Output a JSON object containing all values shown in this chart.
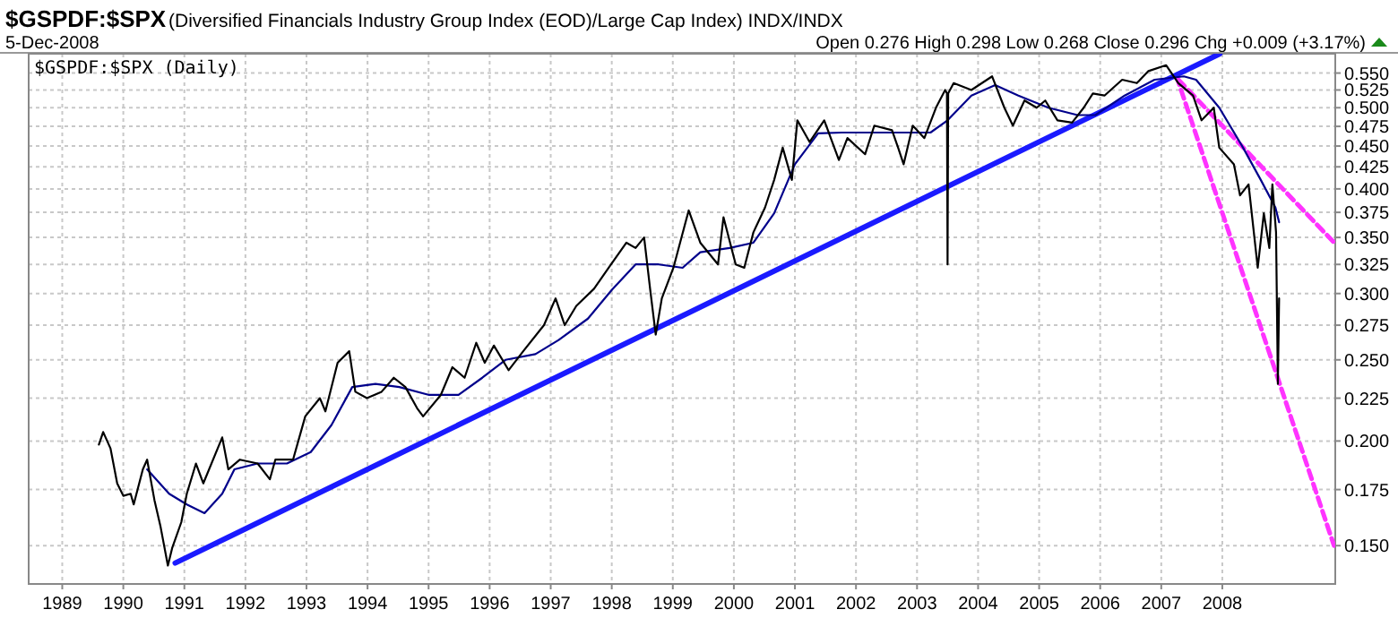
{
  "chart_data": {
    "type": "line",
    "title": "$GSPDF:$SPX",
    "subtitle": "(Diversified Financials Industry Group Index (EOD)/Large Cap Index) INDX/INDX",
    "annotations": [
      "5-Dec-2008",
      "Open 0.276 High 0.298 Low 0.268 Close 0.296 Chg +0.009 (+3.17%)",
      "$GSPDF:$SPX (Daily)"
    ],
    "log": "y",
    "grid": true,
    "xlim": [
      1988.45,
      2009.85
    ],
    "xticks": [
      1989,
      1990,
      1991,
      1992,
      1993,
      1994,
      1995,
      1996,
      1997,
      1998,
      1999,
      2000,
      2001,
      2002,
      2003,
      2004,
      2005,
      2006,
      2007,
      2008
    ],
    "ylim": [
      0.135,
      0.58
    ],
    "yticks": [
      {
        "value": 0.15,
        "label": "0.150"
      },
      0.175,
      {
        "value": 0.2,
        "label": "0.200"
      },
      0.225,
      {
        "value": 0.25,
        "label": "0.250"
      },
      0.275,
      {
        "value": 0.3,
        "label": "0.300"
      },
      0.325,
      {
        "value": 0.35,
        "label": "0.350"
      },
      0.375,
      {
        "value": 0.4,
        "label": "0.400"
      },
      0.425,
      {
        "value": 0.45,
        "label": "0.450"
      },
      0.475,
      {
        "value": 0.5,
        "label": "0.500"
      },
      0.525,
      {
        "value": 0.55,
        "label": "0.550"
      }
    ],
    "series": [
      {
        "color": "#000000",
        "x": [
          1989.6,
          1989.67,
          1989.79,
          1989.9,
          1990.0,
          1990.12,
          1990.17,
          1990.32,
          1990.39,
          1990.51,
          1990.61,
          1990.73,
          1990.8,
          1990.95,
          1991.04,
          1991.19,
          1991.31,
          1991.62,
          1991.72,
          1991.91,
          1992.2,
          1992.4,
          1992.49,
          1992.78,
          1992.98,
          1993.22,
          1993.31,
          1993.51,
          1993.7,
          1993.8,
          1993.99,
          1994.23,
          1994.43,
          1994.62,
          1994.81,
          1994.91,
          1995.2,
          1995.39,
          1995.59,
          1995.78,
          1995.92,
          1996.07,
          1996.31,
          1996.55,
          1996.89,
          1997.08,
          1997.23,
          1997.42,
          1997.71,
          1997.95,
          1998.24,
          1998.39,
          1998.53,
          1998.63,
          1998.72,
          1998.82,
          1999.01,
          1999.26,
          1999.45,
          1999.74,
          1999.83,
          2000.03,
          2000.17,
          2000.32,
          2000.51,
          2000.66,
          2000.8,
          2000.95,
          2001.04,
          2001.24,
          2001.48,
          2001.72,
          2001.86,
          2002.15,
          2002.3,
          2002.59,
          2002.69,
          2002.78,
          2002.93,
          2003.12,
          2003.31,
          2003.46,
          2003.49,
          2003.5,
          2003.51,
          2003.6,
          2003.89,
          2004.23,
          2004.43,
          2004.57,
          2004.76,
          2004.96,
          2005.1,
          2005.3,
          2005.54,
          2005.73,
          2005.88,
          2006.07,
          2006.36,
          2006.6,
          2006.79,
          2007.08,
          2007.28,
          2007.52,
          2007.66,
          2007.86,
          2007.95,
          2008.19,
          2008.29,
          2008.43,
          2008.58,
          2008.68,
          2008.77,
          2008.82,
          2008.88,
          2008.91,
          2008.93
        ],
        "values": [
          0.198,
          0.205,
          0.196,
          0.178,
          0.172,
          0.173,
          0.168,
          0.185,
          0.19,
          0.17,
          0.158,
          0.142,
          0.149,
          0.16,
          0.173,
          0.188,
          0.178,
          0.202,
          0.185,
          0.19,
          0.188,
          0.18,
          0.19,
          0.19,
          0.214,
          0.225,
          0.217,
          0.248,
          0.256,
          0.229,
          0.225,
          0.229,
          0.238,
          0.232,
          0.219,
          0.214,
          0.227,
          0.245,
          0.238,
          0.262,
          0.248,
          0.26,
          0.243,
          0.256,
          0.275,
          0.296,
          0.275,
          0.29,
          0.304,
          0.322,
          0.345,
          0.34,
          0.35,
          0.303,
          0.268,
          0.296,
          0.322,
          0.377,
          0.345,
          0.325,
          0.37,
          0.325,
          0.322,
          0.355,
          0.38,
          0.41,
          0.448,
          0.41,
          0.483,
          0.455,
          0.483,
          0.433,
          0.46,
          0.44,
          0.476,
          0.47,
          0.448,
          0.428,
          0.476,
          0.46,
          0.5,
          0.525,
          0.52,
          0.325,
          0.52,
          0.535,
          0.525,
          0.545,
          0.5,
          0.476,
          0.51,
          0.5,
          0.51,
          0.483,
          0.48,
          0.5,
          0.52,
          0.517,
          0.54,
          0.535,
          0.553,
          0.562,
          0.535,
          0.517,
          0.483,
          0.5,
          0.448,
          0.428,
          0.393,
          0.405,
          0.322,
          0.374,
          0.34,
          0.405,
          0.355,
          0.234,
          0.296
        ]
      },
      {
        "color": "#00008b",
        "x": [
          1990.39,
          1990.75,
          1991.04,
          1991.33,
          1991.62,
          1991.82,
          1992.2,
          1992.68,
          1993.07,
          1993.41,
          1993.75,
          1994.13,
          1994.52,
          1995.01,
          1995.49,
          1995.88,
          1996.26,
          1996.75,
          1997.13,
          1997.61,
          1998.0,
          1998.39,
          1998.77,
          1999.16,
          1999.45,
          1999.93,
          2000.32,
          2000.66,
          2001.0,
          2001.38,
          2001.77,
          2002.25,
          2002.74,
          2003.22,
          2003.5,
          2003.89,
          2004.28,
          2004.66,
          2005.15,
          2005.63,
          2005.92,
          2006.4,
          2006.89,
          2007.37,
          2007.57,
          2007.95,
          2008.34,
          2008.63,
          2008.87,
          2008.93
        ],
        "values": [
          0.185,
          0.173,
          0.168,
          0.164,
          0.173,
          0.185,
          0.188,
          0.188,
          0.194,
          0.209,
          0.232,
          0.234,
          0.232,
          0.227,
          0.227,
          0.238,
          0.25,
          0.254,
          0.264,
          0.28,
          0.303,
          0.325,
          0.325,
          0.322,
          0.336,
          0.34,
          0.345,
          0.374,
          0.428,
          0.466,
          0.467,
          0.467,
          0.467,
          0.467,
          0.483,
          0.517,
          0.532,
          0.517,
          0.5,
          0.49,
          0.49,
          0.517,
          0.54,
          0.545,
          0.54,
          0.5,
          0.448,
          0.41,
          0.38,
          0.365
        ]
      },
      {
        "color": "#1a1aff",
        "x": [
          1990.85,
          2007.96
        ],
        "values": [
          0.143,
          0.58
        ]
      },
      {
        "color": "#ff33ff",
        "line_style": "dashed",
        "x": [
          2007.25,
          2009.83
        ],
        "values": [
          0.545,
          0.15
        ]
      },
      {
        "color": "#ff33ff",
        "line_style": "dashed",
        "x": [
          2007.28,
          2009.85
        ],
        "values": [
          0.54,
          0.344
        ]
      }
    ]
  }
}
